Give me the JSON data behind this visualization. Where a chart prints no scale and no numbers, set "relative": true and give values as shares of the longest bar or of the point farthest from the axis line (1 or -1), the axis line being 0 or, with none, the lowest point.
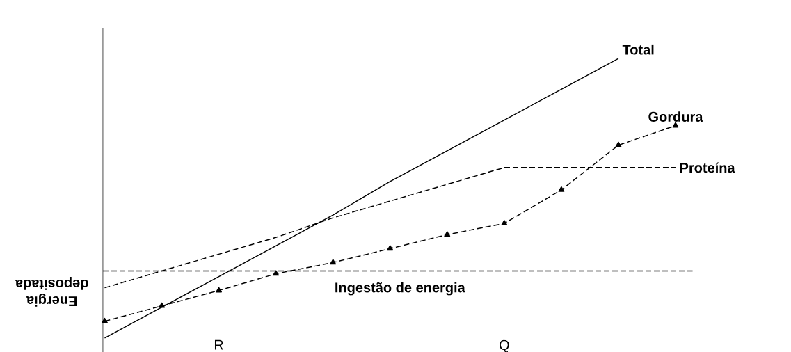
{
  "chart_data": {
    "type": "line",
    "relative": true,
    "xlabel": "Ingestão de energia",
    "ylabel": "Energia depositada",
    "categories": [
      null,
      null,
      "R",
      null,
      null,
      null,
      null,
      "Q",
      null,
      null,
      null
    ],
    "series": [
      {
        "name": "Total",
        "color": "#000000",
        "line_style": "solid",
        "marker": "none",
        "values": [
          0,
          0.11,
          0.22,
          0.33,
          0.44,
          0.56,
          0.67,
          0.78,
          0.89,
          1,
          null
        ]
      },
      {
        "name": "Gordura",
        "color": "#000000",
        "line_style": "dashed",
        "marker": "triangle",
        "values": [
          0.06,
          0.115,
          0.17,
          0.23,
          0.27,
          0.32,
          0.37,
          0.41,
          0.53,
          0.69,
          0.76
        ]
      },
      {
        "name": "Proteína",
        "color": "#000000",
        "line_style": "dashed",
        "marker": "none",
        "values": [
          0.18,
          0.24,
          0.3,
          0.36,
          0.43,
          0.49,
          0.55,
          0.61,
          0.61,
          0.61,
          0.61
        ]
      }
    ],
    "ref_lines": [
      {
        "axis": "y",
        "value": 0.24,
        "line_style": "dashed",
        "color": "#000000"
      }
    ]
  }
}
